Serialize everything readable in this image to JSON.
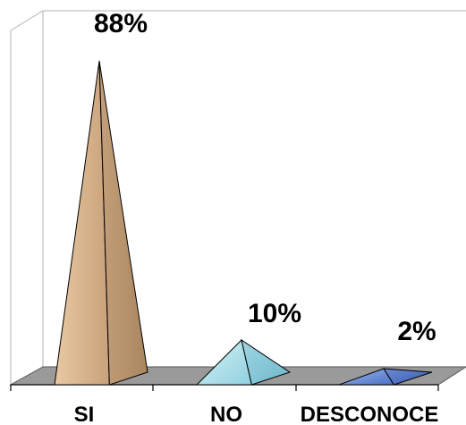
{
  "chart_data": {
    "type": "bar",
    "categories": [
      "SI",
      "NO",
      "DESCONOCE"
    ],
    "values": [
      88,
      10,
      2
    ],
    "data_labels": [
      "88%",
      "10%",
      "2%"
    ],
    "ylim": [
      0,
      100
    ],
    "grid": false,
    "legend": "none"
  },
  "colors": {
    "si": "#d9b48a",
    "no": "#a9dde8",
    "desconoce": "#6b8fd6",
    "floor": "#9a9a9a"
  }
}
